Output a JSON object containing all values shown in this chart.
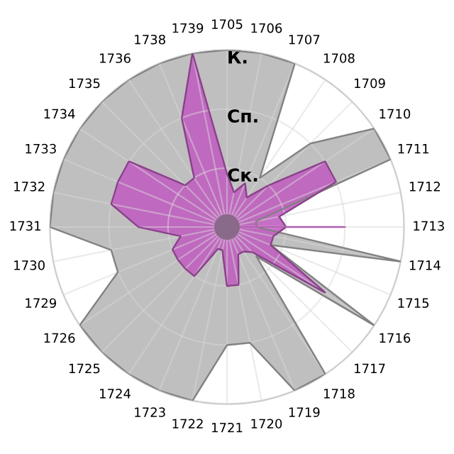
{
  "chart_data": {
    "type": "radar",
    "categories": [
      "1705",
      "1706",
      "1707",
      "1708",
      "1709",
      "1710",
      "1711",
      "1712",
      "1713",
      "1714",
      "1715",
      "1716",
      "1717",
      "1718",
      "1719",
      "1720",
      "1721",
      "1722",
      "1723",
      "1724",
      "1725",
      "1726",
      "1729",
      "1730",
      "1731",
      "1732",
      "1733",
      "1734",
      "1735",
      "1736",
      "1738",
      "1739"
    ],
    "ylim": [
      0,
      3
    ],
    "yticks": [
      {
        "value": 1,
        "label": "Ск."
      },
      {
        "value": 2,
        "label": "Сп."
      },
      {
        "value": 3,
        "label": "К."
      }
    ],
    "grid": true,
    "series": [
      {
        "color": "#b8b8b8",
        "values": [
          3,
          3,
          3,
          1,
          2,
          3,
          3,
          0.5,
          0.5,
          3,
          0.8,
          3,
          0.7,
          3,
          3,
          2,
          2,
          3,
          3,
          3,
          3,
          3,
          2,
          2,
          3,
          3,
          3,
          3,
          3,
          3,
          3,
          3
        ]
      },
      {
        "color": "#c060c0",
        "values": [
          0.9,
          0.6,
          0.8,
          0.6,
          1,
          2,
          2,
          0.9,
          1,
          0.8,
          0.8,
          2,
          0.6,
          0.5,
          0.5,
          1,
          1,
          0.4,
          0.4,
          1,
          1,
          1,
          1,
          0.8,
          1.5,
          2,
          2,
          2,
          1,
          1,
          2,
          3
        ]
      },
      {
        "color": "#f090f0",
        "values": [
          0,
          0,
          0,
          0,
          0,
          0,
          0,
          0,
          2,
          0,
          0,
          0,
          0,
          0,
          0,
          0,
          0,
          0,
          0,
          0,
          0,
          0,
          0,
          0,
          0,
          0,
          0,
          0,
          0,
          0,
          0,
          0
        ]
      }
    ]
  }
}
